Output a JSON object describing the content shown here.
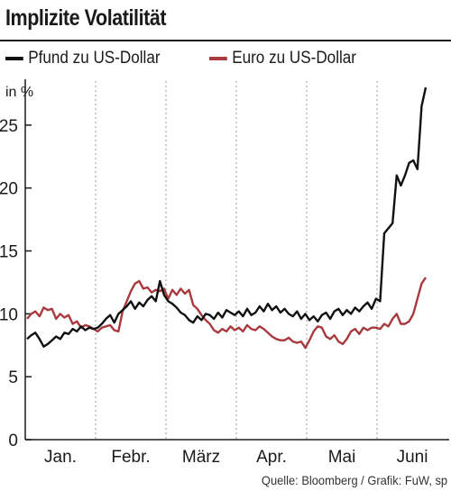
{
  "title": "Implizite Volatilität",
  "unit_label": "in %",
  "source": "Quelle: Bloomberg / Grafik: FuW, sp",
  "colors": {
    "gbp": "#111111",
    "eur": "#a83a3e",
    "grid": "#9a9a9a",
    "axis": "#1a1a1a"
  },
  "chart_data": {
    "type": "line",
    "ylim": [
      0,
      28.5
    ],
    "yticks": [
      0,
      5,
      10,
      15,
      20,
      25
    ],
    "grid": "vertical-dashed",
    "legend_position": "top",
    "months": [
      "Jan.",
      "Febr.",
      "März",
      "Apr.",
      "Mai",
      "Juni"
    ],
    "series": [
      {
        "name": "Pfund zu US-Dollar",
        "color": "#111111",
        "values": [
          8.0,
          8.3,
          8.5,
          8.0,
          7.4,
          7.6,
          7.9,
          8.2,
          8.0,
          8.5,
          8.4,
          8.8,
          8.6,
          9.0,
          8.7,
          8.9,
          8.8,
          8.9,
          9.2,
          9.6,
          9.9,
          9.3,
          10.0,
          10.3,
          10.6,
          11.0,
          10.4,
          10.9,
          10.6,
          11.1,
          11.4,
          11.0,
          12.6,
          11.5,
          11.0,
          10.8,
          10.5,
          10.1,
          9.9,
          9.5,
          9.3,
          9.8,
          9.5,
          10.0,
          9.9,
          9.6,
          10.1,
          9.7,
          10.3,
          10.1,
          9.9,
          10.2,
          9.8,
          10.4,
          9.9,
          10.1,
          10.6,
          10.2,
          10.8,
          10.3,
          10.6,
          10.1,
          10.4,
          10.0,
          9.8,
          10.2,
          9.6,
          10.0,
          9.5,
          9.8,
          9.4,
          9.9,
          10.1,
          9.6,
          10.2,
          10.4,
          9.9,
          10.3,
          10.0,
          10.5,
          10.2,
          10.6,
          10.9,
          10.4,
          11.2,
          11.0,
          16.4,
          16.8,
          17.2,
          21.0,
          20.2,
          21.0,
          22.0,
          22.2,
          21.5,
          26.5,
          28.0
        ]
      },
      {
        "name": "Euro zu US-Dollar",
        "color": "#a83a3e",
        "values": [
          9.6,
          10.0,
          10.2,
          9.8,
          10.5,
          10.3,
          10.4,
          9.6,
          10.0,
          9.7,
          9.9,
          9.2,
          9.4,
          8.9,
          9.1,
          9.0,
          8.8,
          8.6,
          8.9,
          9.0,
          9.1,
          8.7,
          8.6,
          10.2,
          11.0,
          11.8,
          12.4,
          12.6,
          12.0,
          12.1,
          11.7,
          11.9,
          11.8,
          12.0,
          11.2,
          11.9,
          11.5,
          12.0,
          11.6,
          11.9,
          10.7,
          10.4,
          9.9,
          9.5,
          9.2,
          8.7,
          8.5,
          8.8,
          8.6,
          9.0,
          8.7,
          8.9,
          8.6,
          9.1,
          8.8,
          8.7,
          9.0,
          8.8,
          8.5,
          8.2,
          8.0,
          7.9,
          7.9,
          8.1,
          7.8,
          7.7,
          7.8,
          7.3,
          7.9,
          8.6,
          9.0,
          8.9,
          8.2,
          8.0,
          8.3,
          7.8,
          7.6,
          8.0,
          8.6,
          8.8,
          8.4,
          8.9,
          8.7,
          8.9,
          8.9,
          8.8,
          9.2,
          9.0,
          9.6,
          10.0,
          9.2,
          9.2,
          9.4,
          10.0,
          11.2,
          12.4,
          12.9
        ]
      }
    ]
  }
}
